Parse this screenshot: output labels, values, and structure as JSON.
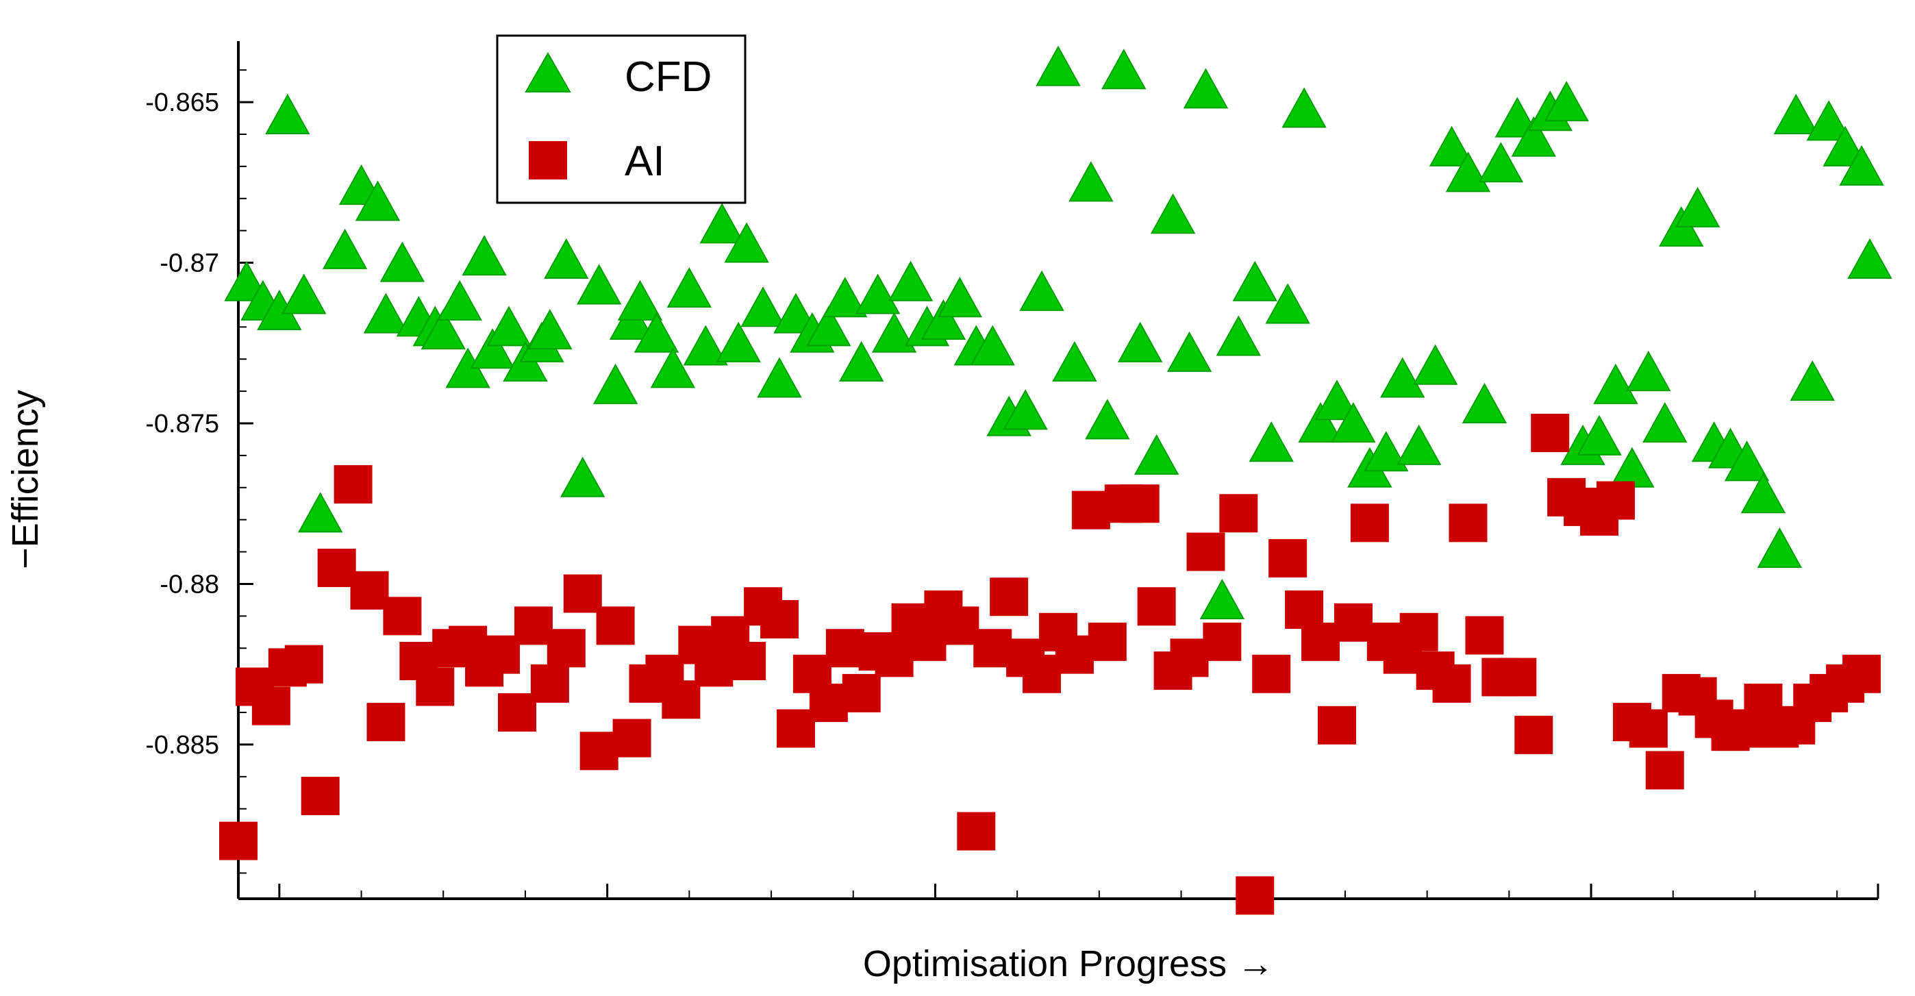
{
  "chart_data": {
    "type": "scatter",
    "title": "",
    "xlabel": "Optimisation Progress →",
    "ylabel": "−Efficiency",
    "xlim": [
      0,
      200
    ],
    "ylim": [
      -0.8898,
      -0.8631
    ],
    "yticks": [
      -0.865,
      -0.87,
      -0.875,
      -0.88,
      -0.885
    ],
    "ytick_labels": [
      "-0.865",
      "-0.87",
      "-0.875",
      "-0.88",
      "-0.885"
    ],
    "grid": false,
    "legend": {
      "position": "top-left"
    },
    "colors": {
      "CFD": "#00c800",
      "AI": "#cc0000",
      "axis": "#000000"
    },
    "series": [
      {
        "name": "CFD",
        "marker": "triangle",
        "x": [
          1,
          3,
          5,
          6,
          8,
          10,
          13,
          15,
          17,
          18,
          20,
          22,
          24,
          25,
          27,
          28,
          30,
          31,
          33,
          35,
          37,
          38,
          40,
          42,
          44,
          46,
          48,
          49,
          51,
          53,
          55,
          57,
          59,
          61,
          62,
          64,
          66,
          68,
          70,
          72,
          74,
          76,
          78,
          80,
          82,
          84,
          86,
          88,
          90,
          92,
          94,
          96,
          98,
          100,
          102,
          104,
          106,
          108,
          110,
          112,
          114,
          116,
          118,
          120,
          122,
          124,
          126,
          128,
          130,
          132,
          134,
          136,
          138,
          140,
          142,
          144,
          146,
          148,
          150,
          152,
          154,
          156,
          158,
          160,
          162,
          164,
          166,
          168,
          170,
          172,
          174,
          176,
          178,
          180,
          182,
          184,
          186,
          188,
          190,
          192,
          194,
          196,
          198,
          199
        ],
        "y": [
          -0.8707,
          -0.8713,
          -0.8716,
          -0.8655,
          -0.8711,
          -0.8779,
          -0.8697,
          -0.8677,
          -0.8682,
          -0.8717,
          -0.8701,
          -0.8718,
          -0.8721,
          -0.8722,
          -0.8713,
          -0.8734,
          -0.8699,
          -0.8728,
          -0.8721,
          -0.8732,
          -0.8726,
          -0.8722,
          -0.87,
          -0.8768,
          -0.8708,
          -0.8739,
          -0.8719,
          -0.8713,
          -0.8723,
          -0.8734,
          -0.8709,
          -0.8727,
          -0.8689,
          -0.8726,
          -0.8695,
          -0.8715,
          -0.8737,
          -0.8717,
          -0.8723,
          -0.8721,
          -0.8712,
          -0.8732,
          -0.8711,
          -0.8723,
          -0.8707,
          -0.8721,
          -0.8719,
          -0.8712,
          -0.8727,
          -0.8727,
          -0.8749,
          -0.8747,
          -0.871,
          -0.864,
          -0.8732,
          -0.8676,
          -0.875,
          -0.8641,
          -0.8726,
          -0.8761,
          -0.8686,
          -0.8729,
          -0.8647,
          -0.8806,
          -0.8724,
          -0.8707,
          -0.8757,
          -0.8714,
          -0.8653,
          -0.8751,
          -0.8744,
          -0.8751,
          -0.8765,
          -0.876,
          -0.8737,
          -0.8758,
          -0.8733,
          -0.8665,
          -0.8673,
          -0.8745,
          -0.867,
          -0.8656,
          -0.8662,
          -0.8654,
          -0.8651,
          -0.8758,
          -0.8755,
          -0.8739,
          -0.8765,
          -0.8735,
          -0.8751,
          -0.869,
          -0.8684,
          -0.8757,
          -0.8759,
          -0.8763,
          -0.8773,
          -0.879,
          -0.8655,
          -0.8738,
          -0.8657,
          -0.8665,
          -0.8671,
          -0.87
        ],
        "note_x_order": "ordered by progress"
      },
      {
        "name": "AI",
        "marker": "square",
        "x": [
          0,
          2,
          4,
          6,
          8,
          10,
          12,
          14,
          16,
          18,
          20,
          22,
          24,
          26,
          28,
          30,
          32,
          34,
          36,
          38,
          40,
          42,
          44,
          46,
          48,
          50,
          52,
          54,
          56,
          58,
          60,
          62,
          64,
          66,
          68,
          70,
          72,
          74,
          76,
          78,
          80,
          82,
          84,
          86,
          88,
          90,
          92,
          94,
          96,
          98,
          100,
          102,
          104,
          106,
          108,
          110,
          112,
          114,
          116,
          118,
          120,
          122,
          124,
          126,
          128,
          130,
          132,
          134,
          136,
          138,
          140,
          142,
          144,
          146,
          148,
          150,
          152,
          154,
          156,
          158,
          160,
          162,
          164,
          166,
          168,
          170,
          172,
          174,
          176,
          178,
          180,
          182,
          184,
          186,
          188,
          190,
          192,
          194,
          196,
          198
        ],
        "y": [
          -0.888,
          -0.8832,
          -0.8838,
          -0.8826,
          -0.8825,
          -0.8866,
          -0.8795,
          -0.8769,
          -0.8802,
          -0.8843,
          -0.881,
          -0.8824,
          -0.8832,
          -0.882,
          -0.8819,
          -0.8826,
          -0.8822,
          -0.884,
          -0.8813,
          -0.8831,
          -0.882,
          -0.8803,
          -0.8852,
          -0.8813,
          -0.8848,
          -0.8831,
          -0.8828,
          -0.8836,
          -0.8819,
          -0.8826,
          -0.8816,
          -0.8824,
          -0.8807,
          -0.8811,
          -0.8845,
          -0.8828,
          -0.8837,
          -0.882,
          -0.8834,
          -0.8821,
          -0.8823,
          -0.8812,
          -0.8818,
          -0.8808,
          -0.8813,
          -0.8877,
          -0.882,
          -0.8804,
          -0.8823,
          -0.8828,
          -0.8815,
          -0.8822,
          -0.8777,
          -0.8818,
          -0.8775,
          -0.8775,
          -0.8807,
          -0.8827,
          -0.8823,
          -0.879,
          -0.8818,
          -0.8778,
          -0.8897,
          -0.8828,
          -0.8792,
          -0.8808,
          -0.8818,
          -0.8844,
          -0.8812,
          -0.8781,
          -0.8818,
          -0.8822,
          -0.8815,
          -0.8827,
          -0.8831,
          -0.8781,
          -0.8816,
          -0.8829,
          -0.8829,
          -0.8847,
          -0.8753,
          -0.8773,
          -0.8776,
          -0.8779,
          -0.8774,
          -0.8843,
          -0.8845,
          -0.8858,
          -0.8834,
          -0.8835,
          -0.8842,
          -0.8846,
          -0.8845,
          -0.8837,
          -0.8845,
          -0.8844,
          -0.8837,
          -0.8834,
          -0.8831,
          -0.8828
        ],
        "note_x_order": "ordered by progress"
      }
    ]
  }
}
